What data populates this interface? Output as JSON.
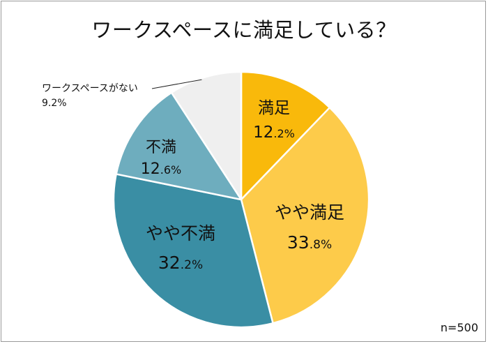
{
  "chart_data": {
    "type": "pie",
    "title": "ワークスペースに満足している？",
    "note": "n=500",
    "start": "top",
    "direction": "clockwise",
    "slices": [
      {
        "name": "満足",
        "value": 12.2,
        "color": "#f9b90b",
        "label_color": "#111111",
        "int": "12",
        "frac": ".2%",
        "labelled": "inside"
      },
      {
        "name": "やや満足",
        "value": 33.8,
        "color": "#fdcb4a",
        "label_color": "#111111",
        "int": "33",
        "frac": ".8%",
        "labelled": "inside"
      },
      {
        "name": "やや不満",
        "value": 32.2,
        "color": "#3a8ea4",
        "label_color": "#111111",
        "int": "32",
        "frac": ".2%",
        "labelled": "inside"
      },
      {
        "name": "不満",
        "value": 12.6,
        "color": "#6eadbe",
        "label_color": "#111111",
        "int": "12",
        "frac": ".6%",
        "labelled": "inside"
      },
      {
        "name": "ワークスペースがない",
        "value": 9.2,
        "color": "#efefef",
        "label_color": "#111111",
        "text": "9.2%",
        "labelled": "outside"
      }
    ]
  }
}
